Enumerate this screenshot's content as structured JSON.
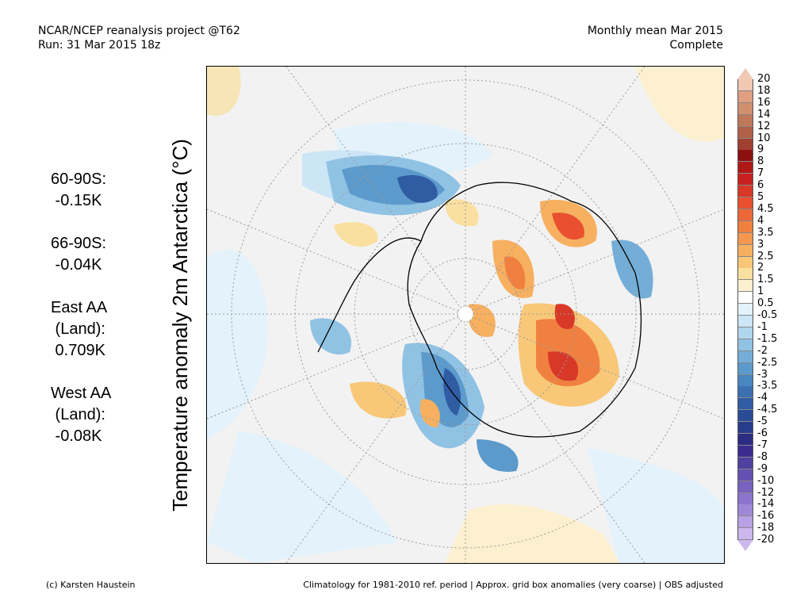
{
  "header": {
    "line1_left": "NCAR/NCEP reanalysis project @T62",
    "line2_left": "Run: 31 Mar 2015 18z",
    "line1_right": "Monthly mean Mar 2015",
    "line2_right": "Complete"
  },
  "y_title": "Temperature anomaly 2m Antarctica (°C)",
  "stats": [
    {
      "lines": [
        "60-90S:",
        " -0.15K"
      ]
    },
    {
      "lines": [
        "66-90S:",
        " -0.04K"
      ]
    },
    {
      "lines": [
        "East AA",
        " (Land):",
        " 0.709K"
      ]
    },
    {
      "lines": [
        "West AA",
        " (Land):",
        " -0.08K"
      ]
    }
  ],
  "colorbar": {
    "labels": [
      "20",
      "18",
      "16",
      "14",
      "12",
      "10",
      "9",
      "8",
      "7",
      "6",
      "5",
      "4.5",
      "4",
      "3.5",
      "3",
      "2.5",
      "2",
      "1.5",
      "1",
      "0.5",
      "-0.5",
      "-1",
      "-1.5",
      "-2",
      "-2.5",
      "-3",
      "-3.5",
      "-4",
      "-4.5",
      "-5",
      "-6",
      "-7",
      "-8",
      "-9",
      "-10",
      "-12",
      "-14",
      "-16",
      "-18",
      "-20"
    ],
    "colors": [
      "#f0c8b4",
      "#dea080",
      "#d09070",
      "#c0785a",
      "#b06048",
      "#a04030",
      "#8c1010",
      "#b01818",
      "#c82020",
      "#d83828",
      "#e85030",
      "#ec6838",
      "#f08040",
      "#f49850",
      "#f6b060",
      "#f8c878",
      "#fae0a0",
      "#fdf0d0",
      "#ffffff",
      "#e4f2fb",
      "#cce6f6",
      "#b0d6ee",
      "#90c2e4",
      "#74aed8",
      "#5c9acc",
      "#4a86c0",
      "#3c70b0",
      "#305ca4",
      "#2a4c98",
      "#283c8c",
      "#2c2c84",
      "#3c2c90",
      "#5040a0",
      "#6450b0",
      "#7862c0",
      "#8c74cc",
      "#a088d8",
      "#b8a0e4",
      "#ccb8ee"
    ]
  },
  "footer": {
    "left": "(c) Karsten Haustein",
    "right": "Climatology for 1981-2010 ref. period | Approx. grid box anomalies (very coarse) | OBS adjusted"
  },
  "map": {
    "land_outline_color": "#000000",
    "grid_color": "#9a9a9a"
  }
}
